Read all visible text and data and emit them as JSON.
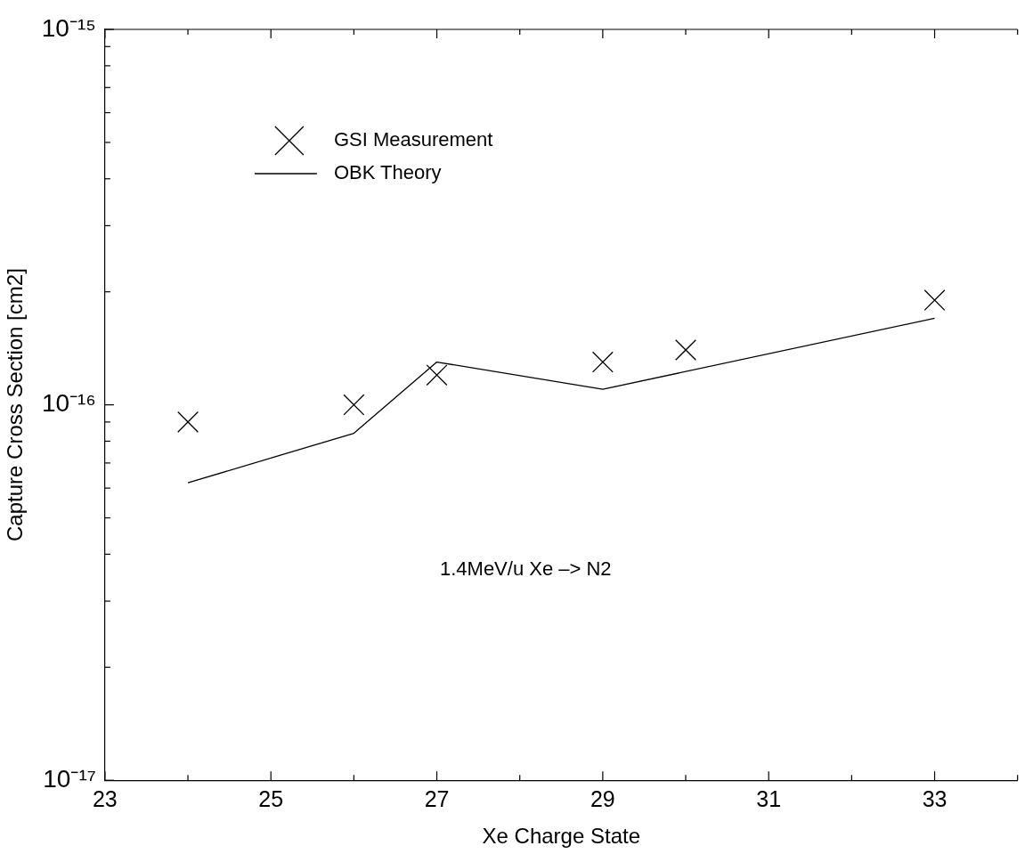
{
  "chart_data": {
    "type": "scatter",
    "xlabel": "Xe Charge State",
    "ylabel": "Capture Cross Section [cm2]",
    "annotations": [
      "1.4MeV/u Xe –> N2"
    ],
    "log": "y",
    "legend": "top left",
    "marker": "cross",
    "grid": false,
    "xlim": [
      23,
      34
    ],
    "xticks": [
      23,
      {
        "value": 24,
        "label": null
      },
      25,
      {
        "value": 26,
        "label": null
      },
      27,
      {
        "value": 28,
        "label": null
      },
      29,
      {
        "value": 30,
        "label": null
      },
      31,
      {
        "value": 32,
        "label": null
      },
      33,
      {
        "value": 34,
        "label": null
      }
    ],
    "ylim": [
      1e-17,
      1e-15
    ],
    "yticks": [
      {
        "value": 1e-17,
        "label": "10⁻¹⁷"
      },
      {
        "value": 2e-17,
        "label": null
      },
      {
        "value": 3e-17,
        "label": null
      },
      {
        "value": 4e-17,
        "label": null
      },
      {
        "value": 5e-17,
        "label": null
      },
      {
        "value": 6e-17,
        "label": null
      },
      {
        "value": 7e-17,
        "label": null
      },
      {
        "value": 8e-17,
        "label": null
      },
      {
        "value": 9e-17,
        "label": null
      },
      {
        "value": 1e-16,
        "label": "10⁻¹⁶"
      },
      {
        "value": 2e-16,
        "label": null
      },
      {
        "value": 3e-16,
        "label": null
      },
      {
        "value": 4e-16,
        "label": null
      },
      {
        "value": 5e-16,
        "label": null
      },
      {
        "value": 6e-16,
        "label": null
      },
      {
        "value": 7e-16,
        "label": null
      },
      {
        "value": 8e-16,
        "label": null
      },
      {
        "value": 9e-16,
        "label": null
      },
      {
        "value": 1e-15,
        "label": "10⁻¹⁵"
      }
    ],
    "series": [
      {
        "name": "GSI Measurement",
        "color": "#000000",
        "x": [
          24,
          26,
          27,
          29,
          30,
          33
        ],
        "values": [
          9e-17,
          1e-16,
          1.2e-16,
          1.3e-16,
          1.4e-16,
          1.9e-16
        ]
      },
      {
        "name": "OBK Theory",
        "type": "line",
        "marker": "none",
        "line_style": "solid",
        "color": "#000000",
        "x": [
          24,
          26,
          27,
          29,
          33
        ],
        "values": [
          6.2e-17,
          8.4e-17,
          1.3e-16,
          1.1e-16,
          1.7e-16
        ]
      }
    ]
  }
}
